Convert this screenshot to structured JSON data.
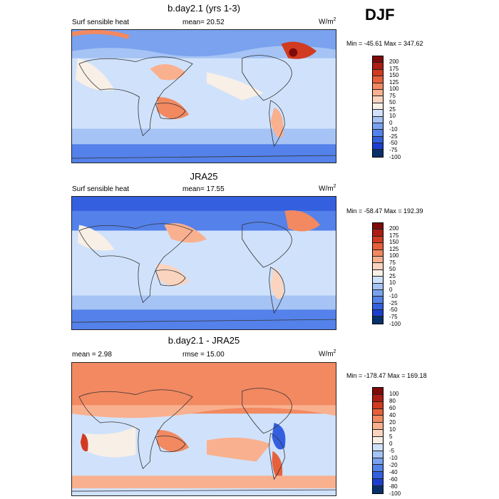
{
  "season": "DJF",
  "palette": [
    "#08306b",
    "#1c3fd1",
    "#3460e0",
    "#5481ea",
    "#7aa2ee",
    "#a5c3f4",
    "#d0e2fb",
    "#f8efe6",
    "#fbd4bf",
    "#f9b08f",
    "#f28961",
    "#e6603c",
    "#d13b22",
    "#ad1d14",
    "#7f0a0a"
  ],
  "panels": [
    {
      "title": "b.day2.1 (yrs 1-3)",
      "left": "Surf sensible heat",
      "mean": "mean=  20.52",
      "units": "W/m",
      "units_sup": "2",
      "minmax": "Min = -45.61 Max = 347.62",
      "levels": [
        "200",
        "175",
        "150",
        "125",
        "100",
        "75",
        "50",
        "25",
        "10",
        "0",
        "-10",
        "-25",
        "-50",
        "-75",
        "-100"
      ]
    },
    {
      "title": "JRA25",
      "left": "Surf sensible heat",
      "mean": "mean=  17.55",
      "units": "W/m",
      "units_sup": "2",
      "minmax": "Min = -58.47 Max = 192.39",
      "levels": [
        "200",
        "175",
        "150",
        "125",
        "100",
        "75",
        "50",
        "25",
        "10",
        "0",
        "-10",
        "-25",
        "-50",
        "-75",
        "-100"
      ]
    },
    {
      "title": "b.day2.1 - JRA25",
      "left": "mean =   2.98",
      "mean": "rmse =  15.00",
      "units": "W/m",
      "units_sup": "2",
      "minmax": "Min = -178.47 Max = 169.18",
      "levels": [
        "100",
        "80",
        "60",
        "40",
        "20",
        "10",
        "5",
        "0",
        "-5",
        "-10",
        "-20",
        "-40",
        "-60",
        "-80",
        "-100"
      ]
    }
  ]
}
